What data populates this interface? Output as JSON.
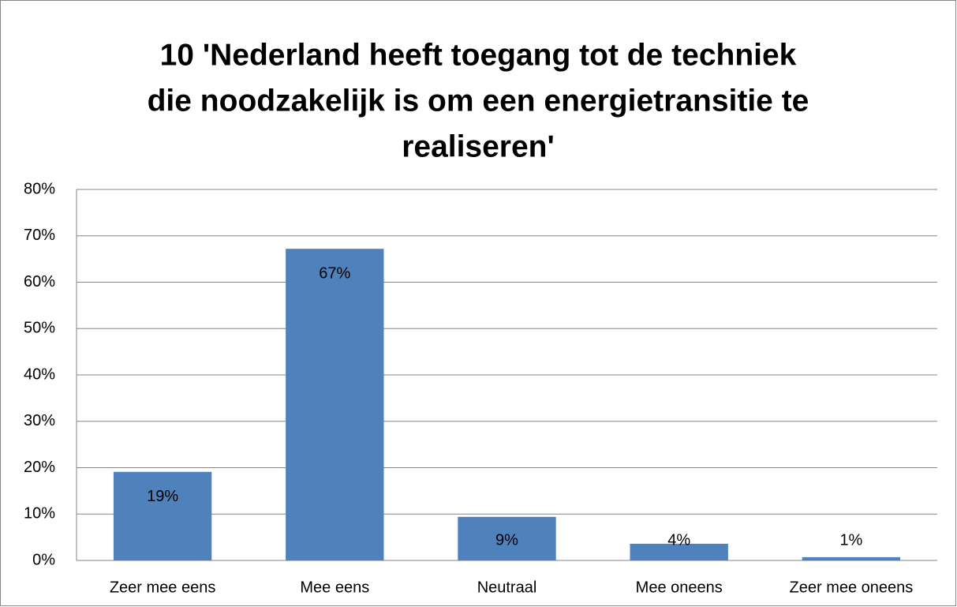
{
  "chart_data": {
    "type": "bar",
    "title": [
      "10 'Nederland heeft toegang tot de techniek",
      "die noodzakelijk is om een energietransitie te",
      "realiseren'"
    ],
    "categories": [
      "Zeer mee eens",
      "Mee eens",
      "Neutraal",
      "Mee oneens",
      "Zeer mee oneens"
    ],
    "values": [
      19.1,
      67.2,
      9.4,
      3.6,
      0.7
    ],
    "value_labels": [
      "19%",
      "67%",
      "9%",
      "4%",
      "1%"
    ],
    "color": "#4f81bd",
    "ylim": [
      0,
      80
    ],
    "yticks": [
      {
        "value": 0,
        "label": "0%"
      },
      {
        "value": 10,
        "label": "10%"
      },
      {
        "value": 20,
        "label": "20%"
      },
      {
        "value": 30,
        "label": "30%"
      },
      {
        "value": 40,
        "label": "40%"
      },
      {
        "value": 50,
        "label": "50%"
      },
      {
        "value": 60,
        "label": "60%"
      },
      {
        "value": 70,
        "label": "70%"
      },
      {
        "value": 80,
        "label": "80%"
      }
    ],
    "grid": true
  }
}
